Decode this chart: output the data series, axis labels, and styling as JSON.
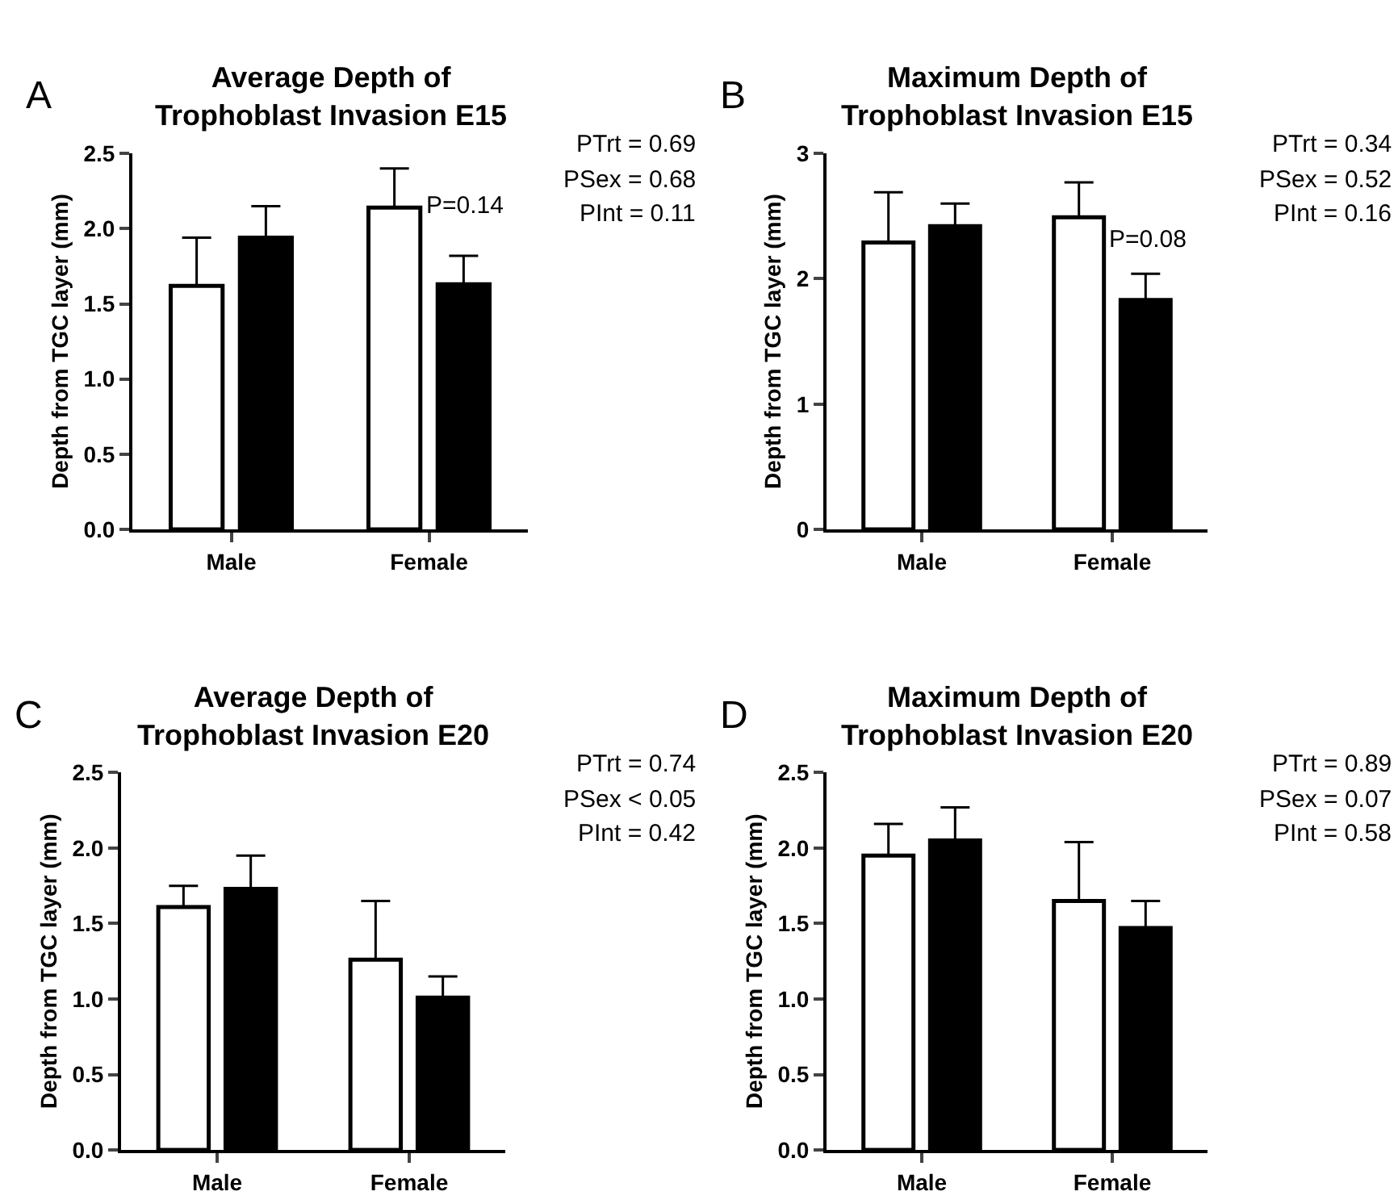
{
  "chart_data": [
    {
      "type": "bar",
      "title": "Average Depth of\nTrophoblast Invasion E15",
      "ylabel": "Depth from TGC layer (mm)",
      "categories": [
        "Male",
        "Female"
      ],
      "series": [
        {
          "color": "#ffffff",
          "values": [
            1.62,
            2.14
          ],
          "errors": [
            [
              1.62,
              1.94
            ],
            [
              2.14,
              2.4
            ]
          ]
        },
        {
          "color": "#000000",
          "values": [
            1.94,
            1.63
          ],
          "errors": [
            [
              1.94,
              2.15
            ],
            [
              1.63,
              1.82
            ]
          ]
        }
      ],
      "ylim": [
        0,
        2.5
      ],
      "yticks": [
        {
          "value": 0,
          "label": "0.0"
        },
        0.5,
        {
          "value": 1,
          "label": "1.0"
        },
        1.5,
        {
          "value": 2,
          "label": "2.0"
        },
        2.5
      ],
      "annotations": [
        "A",
        "PTrt = 0.69",
        "PSex = 0.68",
        "PInt = 0.11",
        "P=0.14"
      ]
    },
    {
      "type": "bar",
      "title": "Maximum Depth of\nTrophoblast Invasion E15",
      "ylabel": "Depth from TGC layer (mm)",
      "categories": [
        "Male",
        "Female"
      ],
      "series": [
        {
          "color": "#ffffff",
          "values": [
            2.29,
            2.49
          ],
          "errors": [
            [
              2.29,
              2.69
            ],
            [
              2.49,
              2.77
            ]
          ]
        },
        {
          "color": "#000000",
          "values": [
            2.42,
            1.83
          ],
          "errors": [
            [
              2.42,
              2.6
            ],
            [
              1.83,
              2.04
            ]
          ]
        }
      ],
      "ylim": [
        0,
        3
      ],
      "yticks": [
        0,
        1,
        2,
        3
      ],
      "annotations": [
        "B",
        "PTrt = 0.34",
        "PSex = 0.52",
        "PInt = 0.16",
        "P=0.08"
      ]
    },
    {
      "type": "bar",
      "title": "Average Depth of\nTrophoblast Invasion E20",
      "ylabel": "Depth from TGC layer (mm)",
      "categories": [
        "Male",
        "Female"
      ],
      "series": [
        {
          "color": "#ffffff",
          "values": [
            1.61,
            1.26
          ],
          "errors": [
            [
              1.61,
              1.75
            ],
            [
              1.26,
              1.65
            ]
          ]
        },
        {
          "color": "#000000",
          "values": [
            1.73,
            1.01
          ],
          "errors": [
            [
              1.73,
              1.95
            ],
            [
              1.01,
              1.15
            ]
          ]
        }
      ],
      "ylim": [
        0,
        2.5
      ],
      "yticks": [
        {
          "value": 0,
          "label": "0.0"
        },
        0.5,
        {
          "value": 1,
          "label": "1.0"
        },
        1.5,
        {
          "value": 2,
          "label": "2.0"
        },
        2.5
      ],
      "annotations": [
        "C",
        "PTrt = 0.74",
        "PSex < 0.05",
        "PInt = 0.42"
      ]
    },
    {
      "type": "bar",
      "title": "Maximum Depth of\nTrophoblast Invasion E20",
      "ylabel": "Depth from TGC layer (mm)",
      "categories": [
        "Male",
        "Female"
      ],
      "series": [
        {
          "color": "#ffffff",
          "values": [
            1.95,
            1.65
          ],
          "errors": [
            [
              1.95,
              2.16
            ],
            [
              1.65,
              2.04
            ]
          ]
        },
        {
          "color": "#000000",
          "values": [
            2.05,
            1.47
          ],
          "errors": [
            [
              2.05,
              2.27
            ],
            [
              1.47,
              1.65
            ]
          ]
        }
      ],
      "ylim": [
        0,
        2.5
      ],
      "yticks": [
        {
          "value": 0,
          "label": "0.0"
        },
        0.5,
        {
          "value": 1,
          "label": "1.0"
        },
        1.5,
        {
          "value": 2,
          "label": "2.0"
        },
        2.5
      ],
      "annotations": [
        "D",
        "PTrt = 0.89",
        "PSex = 0.07",
        "PInt = 0.58"
      ]
    }
  ]
}
